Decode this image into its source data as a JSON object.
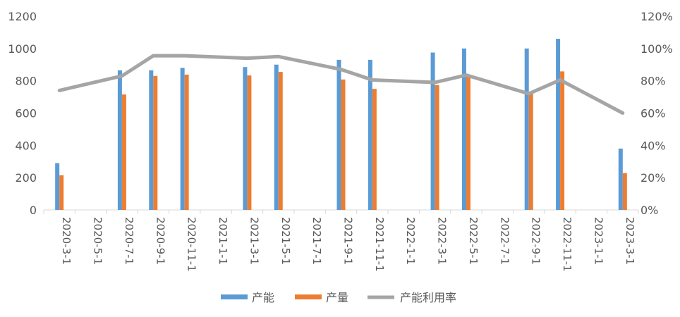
{
  "chart_data": {
    "type": "bar",
    "categories": [
      "2020-3-1",
      "2020-5-1",
      "2020-7-1",
      "2020-9-1",
      "2020-11-1",
      "2021-1-1",
      "2021-3-1",
      "2021-5-1",
      "2021-7-1",
      "2021-9-1",
      "2021-11-1",
      "2022-1-1",
      "2022-3-1",
      "2022-5-1",
      "2022-7-1",
      "2022-9-1",
      "2022-11-1",
      "2023-1-1",
      "2023-3-1"
    ],
    "bar_series": [
      {
        "name": "产能",
        "color": "#5B9BD5",
        "points": [
          {
            "x": "2020-3-1",
            "y": 290
          },
          {
            "x": "2020-7-1",
            "y": 865
          },
          {
            "x": "2020-9-1",
            "y": 865
          },
          {
            "x": "2020-11-1",
            "y": 880
          },
          {
            "x": "2021-3-1",
            "y": 885
          },
          {
            "x": "2021-5-1",
            "y": 900
          },
          {
            "x": "2021-9-1",
            "y": 930
          },
          {
            "x": "2021-11-1",
            "y": 930
          },
          {
            "x": "2022-3-1",
            "y": 975
          },
          {
            "x": "2022-5-1",
            "y": 1000
          },
          {
            "x": "2022-9-1",
            "y": 1000
          },
          {
            "x": "2022-11-1",
            "y": 1060
          },
          {
            "x": "2023-3-1",
            "y": 380
          }
        ]
      },
      {
        "name": "产量",
        "color": "#ED7D31",
        "points": [
          {
            "x": "2020-3-1",
            "y": 215
          },
          {
            "x": "2020-7-1",
            "y": 715
          },
          {
            "x": "2020-9-1",
            "y": 830
          },
          {
            "x": "2020-11-1",
            "y": 838
          },
          {
            "x": "2021-3-1",
            "y": 833
          },
          {
            "x": "2021-5-1",
            "y": 855
          },
          {
            "x": "2021-9-1",
            "y": 808
          },
          {
            "x": "2021-11-1",
            "y": 750
          },
          {
            "x": "2022-3-1",
            "y": 773
          },
          {
            "x": "2022-5-1",
            "y": 830
          },
          {
            "x": "2022-9-1",
            "y": 720
          },
          {
            "x": "2022-11-1",
            "y": 858
          },
          {
            "x": "2023-3-1",
            "y": 228
          }
        ]
      }
    ],
    "line_series": {
      "name": "产能利用率",
      "color": "#A5A5A5",
      "axis": "right",
      "points": [
        {
          "x": "2020-3-1",
          "y": 74
        },
        {
          "x": "2020-7-1",
          "y": 83
        },
        {
          "x": "2020-9-1",
          "y": 95.5
        },
        {
          "x": "2020-11-1",
          "y": 95.5
        },
        {
          "x": "2021-3-1",
          "y": 94
        },
        {
          "x": "2021-5-1",
          "y": 95
        },
        {
          "x": "2021-9-1",
          "y": 87
        },
        {
          "x": "2021-11-1",
          "y": 80.5
        },
        {
          "x": "2022-3-1",
          "y": 79
        },
        {
          "x": "2022-5-1",
          "y": 83.5
        },
        {
          "x": "2022-9-1",
          "y": 72
        },
        {
          "x": "2022-11-1",
          "y": 80.5
        },
        {
          "x": "2023-3-1",
          "y": 60
        }
      ]
    },
    "y_left": {
      "min": 0,
      "max": 1200,
      "ticks": [
        "0",
        "200",
        "400",
        "600",
        "800",
        "1000",
        "1200"
      ]
    },
    "y_right": {
      "min": 0,
      "max": 120,
      "ticks": [
        "0%",
        "20%",
        "40%",
        "60%",
        "80%",
        "100%",
        "120%"
      ]
    },
    "grid": false,
    "legend_position": "bottom",
    "legend": [
      "产能",
      "产量",
      "产能利用率"
    ]
  }
}
